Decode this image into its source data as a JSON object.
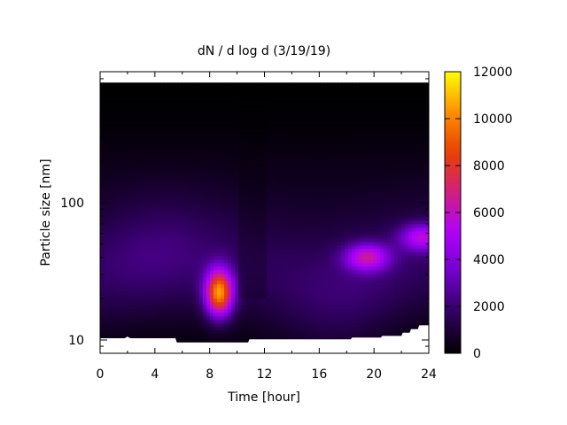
{
  "chart_data": {
    "type": "heatmap",
    "title": "dN / d log d (3/19/19)",
    "xlabel": "Time [hour]",
    "ylabel": "Particle size [nm]",
    "xlim": [
      0,
      24
    ],
    "ylim": [
      8,
      900
    ],
    "y_scale": "log",
    "x_ticks": [
      0,
      4,
      8,
      12,
      16,
      20,
      24
    ],
    "x_tick_labels": [
      "0",
      "4",
      "8",
      "12",
      "16",
      "20",
      "24"
    ],
    "y_ticks": [
      10,
      100
    ],
    "y_tick_labels": [
      "10",
      "100"
    ],
    "colorbar": {
      "range": [
        0,
        12000
      ],
      "ticks": [
        0,
        2000,
        4000,
        6000,
        8000,
        10000,
        12000
      ],
      "tick_labels": [
        "0",
        "2000",
        "4000",
        "6000",
        "8000",
        "10000",
        "12000"
      ],
      "palette": [
        "#000000",
        "#300060",
        "#7000c8",
        "#b000ff",
        "#d02080",
        "#e84000",
        "#ff9000",
        "#ffff00"
      ]
    },
    "data_extent": {
      "x": [
        0,
        24
      ],
      "y_top_nm": 750
    },
    "lower_size_cutoff_nm": [
      [
        0,
        10.3
      ],
      [
        1.8,
        10.3
      ],
      [
        2.0,
        10.6
      ],
      [
        2.2,
        10.3
      ],
      [
        5.5,
        10.3
      ],
      [
        5.6,
        9.6
      ],
      [
        10.8,
        9.6
      ],
      [
        10.9,
        10.1
      ],
      [
        18.3,
        10.1
      ],
      [
        18.4,
        10.4
      ],
      [
        20.5,
        10.4
      ],
      [
        20.6,
        10.7
      ],
      [
        22.0,
        10.7
      ],
      [
        22.1,
        11.3
      ],
      [
        22.6,
        11.3
      ],
      [
        22.7,
        12.0
      ],
      [
        23.2,
        12.0
      ],
      [
        23.3,
        12.8
      ],
      [
        24,
        12.8
      ]
    ],
    "background_level": 2500,
    "peaks": [
      {
        "time_h": 8.7,
        "diameter_nm": 22,
        "value": 11000
      },
      {
        "time_h": 19.5,
        "diameter_nm": 40,
        "value": 6500
      },
      {
        "time_h": 23.5,
        "diameter_nm": 56,
        "value": 6000
      }
    ]
  }
}
